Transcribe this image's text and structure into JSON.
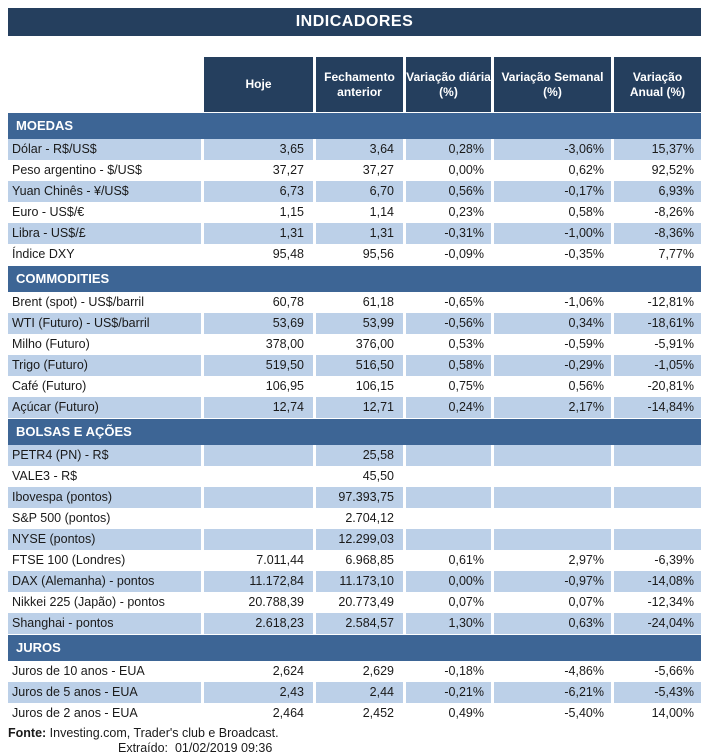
{
  "chart_data": {
    "type": "table",
    "title": "INDICADORES",
    "columns": [
      {
        "line1": "Hoje",
        "line2": ""
      },
      {
        "line1": "Fechamento",
        "line2": "anterior"
      },
      {
        "line1": "Variação diária",
        "line2": "(%)"
      },
      {
        "line1": "Variação Semanal",
        "line2": "(%)"
      },
      {
        "line1": "Variação",
        "line2": "Anual (%)"
      }
    ],
    "sections": [
      {
        "name": "MOEDAS",
        "first_row_shaded": true,
        "rows": [
          {
            "label": "Dólar - R$/US$",
            "hoje": "3,65",
            "fech": "3,64",
            "arrow": "up",
            "diaria": "0,28%",
            "semanal": "-3,06%",
            "anual": "15,37%"
          },
          {
            "label": "Peso argentino - $/US$",
            "hoje": "37,27",
            "fech": "37,27",
            "arrow": "",
            "diaria": "0,00%",
            "semanal": "0,62%",
            "anual": "92,52%"
          },
          {
            "label": "Yuan Chinês - ¥/US$",
            "hoje": "6,73",
            "fech": "6,70",
            "arrow": "up",
            "diaria": "0,56%",
            "semanal": "-0,17%",
            "anual": "6,93%"
          },
          {
            "label": "Euro - US$/€",
            "hoje": "1,15",
            "fech": "1,14",
            "arrow": "up",
            "diaria": "0,23%",
            "semanal": "0,58%",
            "anual": "-8,26%"
          },
          {
            "label": "Libra - US$/£",
            "hoje": "1,31",
            "fech": "1,31",
            "arrow": "down",
            "diaria": "-0,31%",
            "semanal": "-1,00%",
            "anual": "-8,36%"
          },
          {
            "label": "Índice DXY",
            "hoje": "95,48",
            "fech": "95,56",
            "arrow": "down",
            "diaria": "-0,09%",
            "semanal": "-0,35%",
            "anual": "7,77%"
          }
        ]
      },
      {
        "name": "COMMODITIES",
        "first_row_shaded": false,
        "rows": [
          {
            "label": "Brent (spot) - US$/barril",
            "hoje": "60,78",
            "fech": "61,18",
            "arrow": "down",
            "diaria": "-0,65%",
            "semanal": "-1,06%",
            "anual": "-12,81%"
          },
          {
            "label": "WTI (Futuro) - US$/barril",
            "hoje": "53,69",
            "fech": "53,99",
            "arrow": "down",
            "diaria": "-0,56%",
            "semanal": "0,34%",
            "anual": "-18,61%"
          },
          {
            "label": "Milho (Futuro)",
            "hoje": "378,00",
            "fech": "376,00",
            "arrow": "up",
            "diaria": "0,53%",
            "semanal": "-0,59%",
            "anual": "-5,91%"
          },
          {
            "label": "Trigo (Futuro)",
            "hoje": "519,50",
            "fech": "516,50",
            "arrow": "up",
            "diaria": "0,58%",
            "semanal": "-0,29%",
            "anual": "-1,05%"
          },
          {
            "label": "Café (Futuro)",
            "hoje": "106,95",
            "fech": "106,15",
            "arrow": "up",
            "diaria": "0,75%",
            "semanal": "0,56%",
            "anual": "-20,81%"
          },
          {
            "label": "Açúcar (Futuro)",
            "hoje": "12,74",
            "fech": "12,71",
            "arrow": "up",
            "diaria": "0,24%",
            "semanal": "2,17%",
            "anual": "-14,84%"
          }
        ]
      },
      {
        "name": "BOLSAS E AÇÕES",
        "first_row_shaded": true,
        "rows": [
          {
            "label": "PETR4 (PN) - R$",
            "hoje": "",
            "fech": "25,58",
            "arrow": "",
            "diaria": "",
            "semanal": "",
            "anual": ""
          },
          {
            "label": "VALE3 - R$",
            "hoje": "",
            "fech": "45,50",
            "arrow": "",
            "diaria": "",
            "semanal": "",
            "anual": ""
          },
          {
            "label": "Ibovespa (pontos)",
            "hoje": "",
            "fech": "97.393,75",
            "arrow": "",
            "diaria": "",
            "semanal": "",
            "anual": ""
          },
          {
            "label": "S&P 500 (pontos)",
            "hoje": "",
            "fech": "2.704,12",
            "arrow": "",
            "diaria": "",
            "semanal": "",
            "anual": ""
          },
          {
            "label": "NYSE (pontos)",
            "hoje": "",
            "fech": "12.299,03",
            "arrow": "",
            "diaria": "",
            "semanal": "",
            "anual": ""
          },
          {
            "label": "FTSE 100 (Londres)",
            "hoje": "7.011,44",
            "fech": "6.968,85",
            "arrow": "up",
            "diaria": "0,61%",
            "semanal": "2,97%",
            "anual": "-6,39%"
          },
          {
            "label": "DAX (Alemanha) - pontos",
            "hoje": "11.172,84",
            "fech": "11.173,10",
            "arrow": "down",
            "diaria": "0,00%",
            "semanal": "-0,97%",
            "anual": "-14,08%"
          },
          {
            "label": "Nikkei 225 (Japão) - pontos",
            "hoje": "20.788,39",
            "fech": "20.773,49",
            "arrow": "up",
            "diaria": "0,07%",
            "semanal": "0,07%",
            "anual": "-12,34%"
          },
          {
            "label": "Shanghai - pontos",
            "hoje": "2.618,23",
            "fech": "2.584,57",
            "arrow": "up",
            "diaria": "1,30%",
            "semanal": "0,63%",
            "anual": "-24,04%"
          }
        ]
      },
      {
        "name": "JUROS",
        "first_row_shaded": false,
        "rows": [
          {
            "label": "Juros de 10 anos - EUA",
            "hoje": "2,624",
            "fech": "2,629",
            "arrow": "down",
            "diaria": "-0,18%",
            "semanal": "-4,86%",
            "anual": "-5,66%"
          },
          {
            "label": "Juros de 5 anos - EUA",
            "hoje": "2,43",
            "fech": "2,44",
            "arrow": "down",
            "diaria": "-0,21%",
            "semanal": "-6,21%",
            "anual": "-5,43%"
          },
          {
            "label": "Juros de 2 anos - EUA",
            "hoje": "2,464",
            "fech": "2,452",
            "arrow": "up",
            "diaria": "0,49%",
            "semanal": "-5,40%",
            "anual": "14,00%"
          }
        ]
      }
    ]
  },
  "footer": {
    "fonte_label": "Fonte:",
    "fonte_text": " Investing.com, Trader's club e Broadcast.",
    "extraido_label": "Extraído:",
    "extraido_value": "01/02/2019 09:36"
  },
  "colors": {
    "navy": "#253F5E",
    "section": "#3D6595",
    "band": "#BCD0E8",
    "up_fill": "#5FB75F",
    "up_border": "#3C7A3C",
    "down_fill": "#EE8F8F",
    "down_border": "#B94A4A"
  }
}
